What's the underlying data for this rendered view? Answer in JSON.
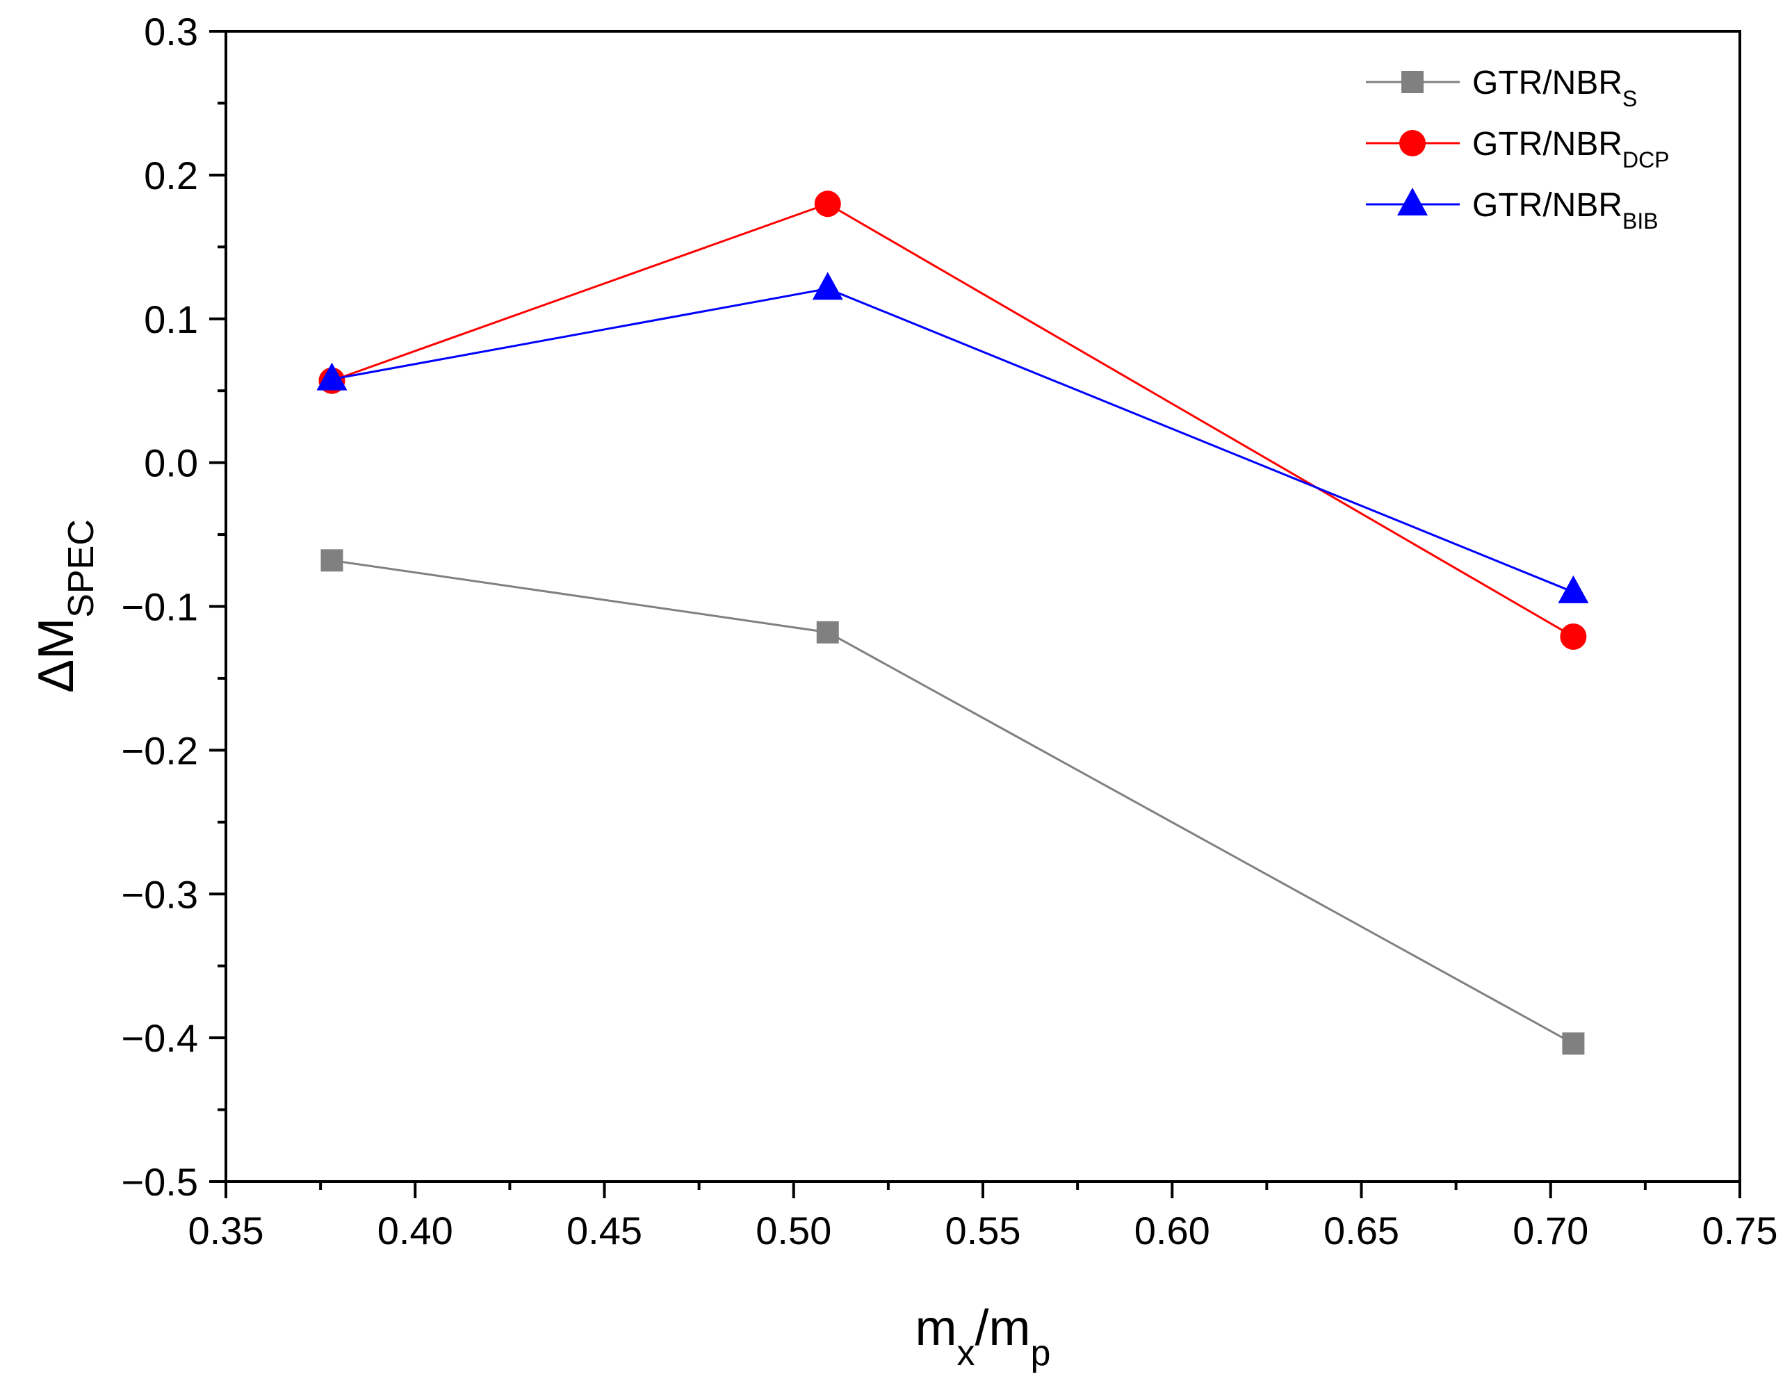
{
  "chart_data": {
    "type": "line",
    "title": "",
    "xlabel": {
      "main": "m",
      "sub1": "x",
      "slash": "/m",
      "sub2": "p"
    },
    "ylabel": {
      "main": "ΔM",
      "sub": "SPEC"
    },
    "xlim": [
      0.35,
      0.75
    ],
    "ylim": [
      -0.5,
      0.3
    ],
    "xticks": [
      "0.35",
      "0.40",
      "0.45",
      "0.50",
      "0.55",
      "0.60",
      "0.65",
      "0.70",
      "0.75"
    ],
    "yticks": [
      "0.3",
      "0.2",
      "0.1",
      "0.0",
      "−0.1",
      "−0.2",
      "−0.3",
      "−0.4",
      "−0.5"
    ],
    "grid": false,
    "legend_position": "top-right",
    "series": [
      {
        "name": "GTR/NBR",
        "subscript": "S",
        "color": "#808080",
        "marker": "square",
        "x": [
          0.378,
          0.509,
          0.706
        ],
        "y": [
          -0.068,
          -0.118,
          -0.404
        ]
      },
      {
        "name": "GTR/NBR",
        "subscript": "DCP",
        "color": "#ff0000",
        "marker": "circle",
        "x": [
          0.378,
          0.509,
          0.706
        ],
        "y": [
          0.057,
          0.18,
          -0.121
        ]
      },
      {
        "name": "GTR/NBR",
        "subscript": "BIB",
        "color": "#0000ff",
        "marker": "triangle",
        "x": [
          0.378,
          0.509,
          0.706
        ],
        "y": [
          0.058,
          0.121,
          -0.09
        ]
      }
    ]
  }
}
